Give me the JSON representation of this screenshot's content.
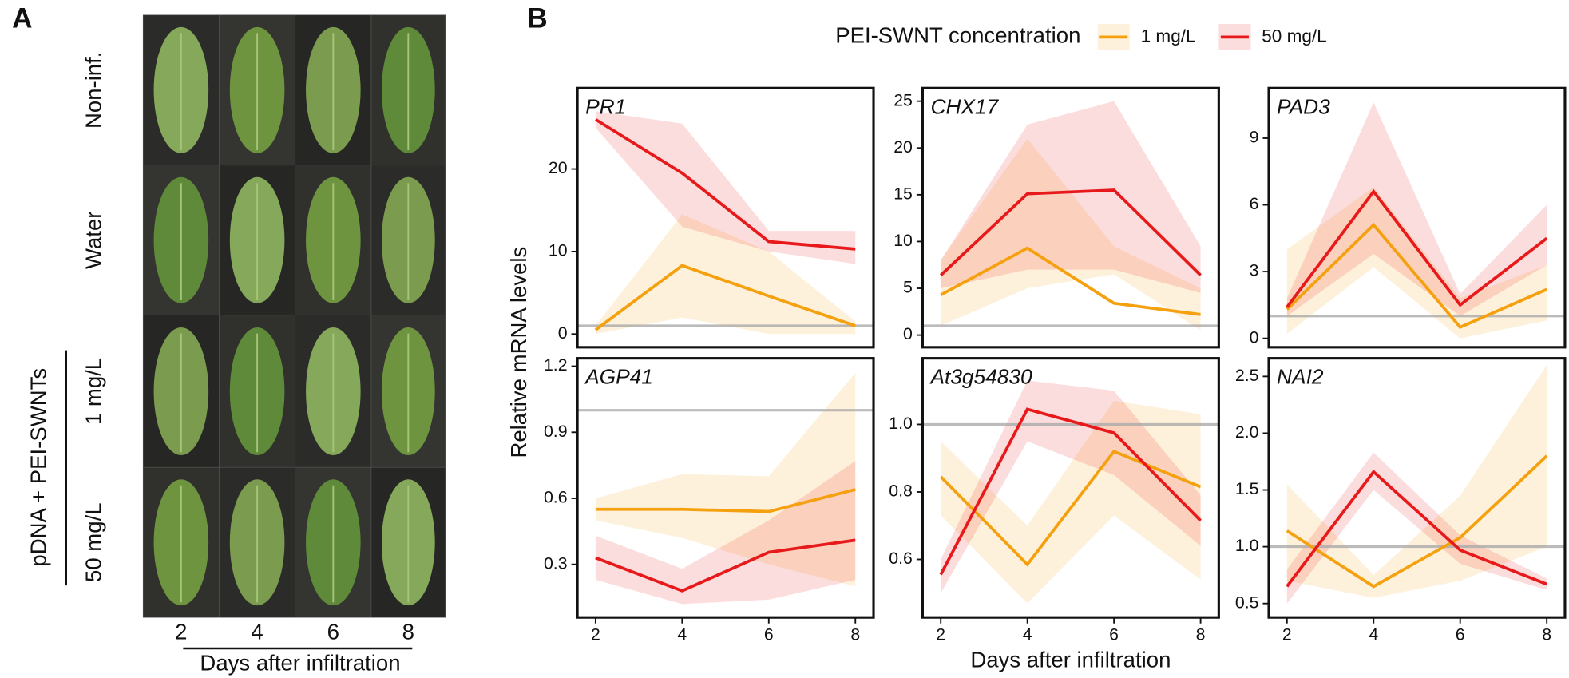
{
  "panel_labels": [
    "A",
    "B"
  ],
  "panel_a": {
    "rows": [
      "Non-inf.",
      "Water",
      "1 mg/L",
      "50 mg/L"
    ],
    "group_label": "pDNA + PEI-SWNTs",
    "columns": [
      "2",
      "4",
      "6",
      "8"
    ],
    "x_label": "Days after infiltration"
  },
  "legend_title": "PEI-SWNT concentration",
  "y_label": "Relative mRNA levels",
  "x_label": "Days after infiltration",
  "chart_data": [
    {
      "type": "line",
      "title": "PR1",
      "x": [
        2,
        4,
        6,
        8
      ],
      "xlim": [
        1.58,
        8.42
      ],
      "ylim": [
        -1.6,
        29.8
      ],
      "yticks": [
        0,
        10,
        20
      ],
      "reference_line": 1,
      "series": [
        {
          "name": "1 mg/L",
          "color": "#f5a10f",
          "values": [
            0.5,
            8.3,
            4.6,
            1.0
          ],
          "lower": [
            0,
            2,
            0,
            0
          ],
          "upper": [
            1,
            14.5,
            10,
            1.5
          ]
        },
        {
          "name": "50 mg/L",
          "color": "#e8191a",
          "values": [
            26,
            19.5,
            11.2,
            10.3
          ],
          "lower": [
            25,
            13,
            10,
            8.5
          ],
          "upper": [
            27,
            25.5,
            12.5,
            12.5
          ]
        }
      ]
    },
    {
      "type": "line",
      "title": "CHX17",
      "x": [
        2,
        4,
        6,
        8
      ],
      "xlim": [
        1.58,
        8.42
      ],
      "ylim": [
        -1.3,
        26.4
      ],
      "yticks": [
        0,
        5,
        10,
        15,
        20,
        25
      ],
      "reference_line": 1,
      "series": [
        {
          "name": "1 mg/L",
          "color": "#f5a10f",
          "values": [
            4.3,
            9.3,
            3.4,
            2.2
          ],
          "lower": [
            1,
            5,
            6.5,
            0.5
          ],
          "upper": [
            8,
            21,
            9.5,
            5
          ]
        },
        {
          "name": "50 mg/L",
          "color": "#e8191a",
          "values": [
            6.4,
            15.1,
            15.5,
            6.4
          ],
          "lower": [
            5,
            7,
            7,
            4.5
          ],
          "upper": [
            8,
            22.5,
            25,
            9.5
          ]
        }
      ]
    },
    {
      "type": "line",
      "title": "PAD3",
      "x": [
        2,
        4,
        6,
        8
      ],
      "xlim": [
        1.58,
        8.42
      ],
      "ylim": [
        -0.4,
        11.25
      ],
      "yticks": [
        0,
        3,
        6,
        9
      ],
      "reference_line": 1,
      "series": [
        {
          "name": "1 mg/L",
          "color": "#f5a10f",
          "values": [
            1.3,
            5.1,
            0.5,
            2.2
          ],
          "lower": [
            0.2,
            3.2,
            0,
            0.8
          ],
          "upper": [
            4,
            6.8,
            1.8,
            3.3
          ]
        },
        {
          "name": "50 mg/L",
          "color": "#e8191a",
          "values": [
            1.4,
            6.6,
            1.5,
            4.5
          ],
          "lower": [
            1.0,
            3.8,
            1.0,
            3.3
          ],
          "upper": [
            1.8,
            10.6,
            2.0,
            6
          ]
        }
      ]
    },
    {
      "type": "line",
      "title": "AGP41",
      "x": [
        2,
        4,
        6,
        8
      ],
      "xlim": [
        1.58,
        8.42
      ],
      "xticks": [
        2,
        4,
        6,
        8
      ],
      "ylim": [
        0.059,
        1.236
      ],
      "yticks": [
        0.3,
        0.6,
        0.9,
        1.2
      ],
      "reference_line": 1,
      "series": [
        {
          "name": "1 mg/L",
          "color": "#f5a10f",
          "values": [
            0.55,
            0.55,
            0.54,
            0.64
          ],
          "lower": [
            0.5,
            0.42,
            0.3,
            0.2
          ],
          "upper": [
            0.6,
            0.71,
            0.7,
            1.17
          ]
        },
        {
          "name": "50 mg/L",
          "color": "#e8191a",
          "values": [
            0.33,
            0.18,
            0.355,
            0.41
          ],
          "lower": [
            0.23,
            0.12,
            0.14,
            0.23
          ],
          "upper": [
            0.43,
            0.28,
            0.5,
            0.77
          ]
        }
      ]
    },
    {
      "type": "line",
      "title": "At3g54830",
      "x": [
        2,
        4,
        6,
        8
      ],
      "xlim": [
        1.58,
        8.42
      ],
      "xticks": [
        2,
        4,
        6,
        8
      ],
      "ylim": [
        0.428,
        1.196
      ],
      "yticks": [
        0.6,
        0.8,
        {
          "value": 1,
          "label": "1.0"
        }
      ],
      "reference_line": 1,
      "series": [
        {
          "name": "1 mg/L",
          "color": "#f5a10f",
          "values": [
            0.845,
            0.585,
            0.92,
            0.815
          ],
          "lower": [
            0.73,
            0.47,
            0.73,
            0.54
          ],
          "upper": [
            0.95,
            0.7,
            1.07,
            1.03
          ]
        },
        {
          "name": "50 mg/L",
          "color": "#e8191a",
          "values": [
            0.555,
            1.045,
            0.975,
            0.715
          ],
          "lower": [
            0.5,
            0.95,
            0.85,
            0.64
          ],
          "upper": [
            0.6,
            1.13,
            1.1,
            0.79
          ]
        }
      ]
    },
    {
      "type": "line",
      "title": "NAI2",
      "x": [
        2,
        4,
        6,
        8
      ],
      "xlim": [
        1.58,
        8.42
      ],
      "xticks": [
        2,
        4,
        6,
        8
      ],
      "ylim": [
        0.377,
        2.66
      ],
      "yticks": [
        0.5,
        {
          "value": 1,
          "label": "1.0"
        },
        1.5,
        {
          "value": 2,
          "label": "2.0"
        },
        2.5
      ],
      "reference_line": 1,
      "series": [
        {
          "name": "1 mg/L",
          "color": "#f5a10f",
          "values": [
            1.14,
            0.65,
            1.08,
            1.8
          ],
          "lower": [
            0.7,
            0.55,
            0.7,
            1.0
          ],
          "upper": [
            1.55,
            0.75,
            1.45,
            2.6
          ]
        },
        {
          "name": "50 mg/L",
          "color": "#e8191a",
          "values": [
            0.65,
            1.66,
            0.97,
            0.67
          ],
          "lower": [
            0.5,
            1.5,
            0.85,
            0.62
          ],
          "upper": [
            0.8,
            1.83,
            1.1,
            0.72
          ]
        }
      ]
    }
  ]
}
